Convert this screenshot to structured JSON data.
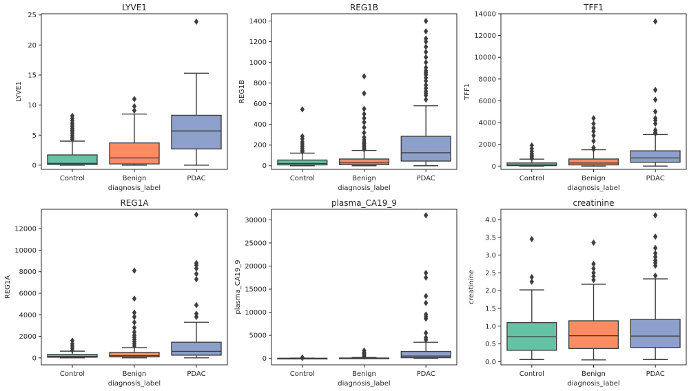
{
  "chart_data": [
    {
      "type": "box",
      "title": "LYVE1",
      "xlabel": "diagnosis_label",
      "ylabel": "LYVE1",
      "categories": [
        "Control",
        "Benign",
        "PDAC"
      ],
      "ylim": [
        -0.7,
        25.2
      ],
      "yticks": [
        0,
        5,
        10,
        15,
        20,
        25
      ],
      "boxes": [
        {
          "category": "Control",
          "min": 0,
          "q1": 0.1,
          "median": 0.3,
          "q3": 1.7,
          "max": 4.0,
          "outliers": [
            4.3,
            4.6,
            4.9,
            5.2,
            5.5,
            5.8,
            6.1,
            6.4,
            6.7,
            7.0,
            7.4,
            7.8,
            8.2
          ]
        },
        {
          "category": "Benign",
          "min": 0,
          "q1": 0.2,
          "median": 1.2,
          "q3": 3.7,
          "max": 8.5,
          "outliers": [
            9.1,
            9.8,
            11.0
          ]
        },
        {
          "category": "PDAC",
          "min": 0,
          "q1": 2.7,
          "median": 5.7,
          "q3": 8.3,
          "max": 15.3,
          "outliers": [
            23.9
          ]
        }
      ]
    },
    {
      "type": "box",
      "title": "REG1B",
      "xlabel": "diagnosis_label",
      "ylabel": "REG1B",
      "categories": [
        "Control",
        "Benign",
        "PDAC"
      ],
      "ylim": [
        -35,
        1470
      ],
      "yticks": [
        0,
        200,
        400,
        600,
        800,
        1000,
        1200,
        1400
      ],
      "boxes": [
        {
          "category": "Control",
          "min": 0,
          "q1": 8,
          "median": 22,
          "q3": 55,
          "max": 122,
          "outliers": [
            135,
            150,
            170,
            190,
            210,
            230,
            260,
            285,
            545
          ]
        },
        {
          "category": "Benign",
          "min": 0,
          "q1": 10,
          "median": 28,
          "q3": 65,
          "max": 148,
          "outliers": [
            158,
            170,
            185,
            200,
            215,
            230,
            250,
            275,
            320,
            370,
            420,
            460,
            500,
            550,
            700,
            865
          ]
        },
        {
          "category": "PDAC",
          "min": 0,
          "q1": 45,
          "median": 125,
          "q3": 285,
          "max": 580,
          "outliers": [
            640,
            680,
            700,
            720,
            750,
            780,
            820,
            850,
            880,
            900,
            920,
            950,
            1000,
            1050,
            1100,
            1150,
            1200,
            1230,
            1300,
            1400
          ]
        }
      ]
    },
    {
      "type": "box",
      "title": "TFF1",
      "xlabel": "diagnosis_label",
      "ylabel": "TFF1",
      "categories": [
        "Control",
        "Benign",
        "PDAC"
      ],
      "ylim": [
        -300,
        14000
      ],
      "yticks": [
        0,
        2000,
        4000,
        6000,
        8000,
        10000,
        12000,
        14000
      ],
      "boxes": [
        {
          "category": "Control",
          "min": 0,
          "q1": 40,
          "median": 110,
          "q3": 290,
          "max": 640,
          "outliers": [
            700,
            850,
            1000,
            1150,
            1350,
            1600,
            1900
          ]
        },
        {
          "category": "Benign",
          "min": 0,
          "q1": 110,
          "median": 280,
          "q3": 650,
          "max": 1500,
          "outliers": [
            1550,
            1700,
            2300,
            2800,
            3200,
            3500,
            3900,
            4400
          ]
        },
        {
          "category": "PDAC",
          "min": 0,
          "q1": 350,
          "median": 750,
          "q3": 1400,
          "max": 2900,
          "outliers": [
            3000,
            3100,
            3300,
            3900,
            4200,
            4400,
            5000,
            6100,
            7000,
            13300
          ]
        }
      ]
    },
    {
      "type": "box",
      "title": "REG1A",
      "xlabel": "diagnosis_label",
      "ylabel": "REG1A",
      "categories": [
        "Control",
        "Benign",
        "PDAC"
      ],
      "ylim": [
        -650,
        13800
      ],
      "yticks": [
        0,
        2000,
        4000,
        6000,
        8000,
        10000,
        12000
      ],
      "boxes": [
        {
          "category": "Control",
          "min": 0,
          "q1": 60,
          "median": 140,
          "q3": 320,
          "max": 620,
          "outliers": [
            700,
            900,
            1100,
            1300,
            1600
          ]
        },
        {
          "category": "Benign",
          "min": 0,
          "q1": 90,
          "median": 200,
          "q3": 500,
          "max": 950,
          "outliers": [
            1100,
            1300,
            1500,
            1700,
            1900,
            2100,
            2400,
            2800,
            3300,
            3800,
            4200,
            5500,
            8100
          ]
        },
        {
          "category": "PDAC",
          "min": 0,
          "q1": 250,
          "median": 600,
          "q3": 1450,
          "max": 3300,
          "outliers": [
            3800,
            4100,
            4900,
            7300,
            7800,
            8300,
            8600,
            8800,
            13300
          ]
        }
      ]
    },
    {
      "type": "box",
      "title": "plasma_CA19_9",
      "xlabel": "diagnosis_label",
      "ylabel": "plasma_CA19_9",
      "categories": [
        "Control",
        "Benign",
        "PDAC"
      ],
      "ylim": [
        -1400,
        32300
      ],
      "yticks": [
        0,
        5000,
        10000,
        15000,
        20000,
        25000,
        30000
      ],
      "boxes": [
        {
          "category": "Control",
          "min": 0,
          "q1": 5,
          "median": 10,
          "q3": 25,
          "max": 60,
          "outliers": [
            80,
            120,
            200
          ]
        },
        {
          "category": "Benign",
          "min": 0,
          "q1": 10,
          "median": 25,
          "q3": 80,
          "max": 200,
          "outliers": [
            400,
            700,
            1000,
            1300,
            1700
          ]
        },
        {
          "category": "PDAC",
          "min": 0,
          "q1": 150,
          "median": 500,
          "q3": 1500,
          "max": 3500,
          "outliers": [
            4000,
            4500,
            5500,
            8600,
            9000,
            9500,
            12000,
            13500,
            17500,
            18500,
            31000
          ]
        }
      ]
    },
    {
      "type": "box",
      "title": "creatinine",
      "xlabel": "diagnosis_label",
      "ylabel": "creatinine",
      "categories": [
        "Control",
        "Benign",
        "PDAC"
      ],
      "ylim": [
        -0.09,
        4.29
      ],
      "yticks": [
        0.0,
        0.5,
        1.0,
        1.5,
        2.0,
        2.5,
        3.0,
        3.5,
        4.0
      ],
      "ytick_labels": [
        "0.0",
        "0.5",
        "1.0",
        "1.5",
        "2.0",
        "2.5",
        "3.0",
        "3.5",
        "4.0"
      ],
      "boxes": [
        {
          "category": "Control",
          "min": 0.06,
          "q1": 0.32,
          "median": 0.7,
          "q3": 1.1,
          "max": 2.02,
          "outliers": [
            2.25,
            2.38,
            3.45
          ]
        },
        {
          "category": "Benign",
          "min": 0.05,
          "q1": 0.37,
          "median": 0.73,
          "q3": 1.15,
          "max": 2.18,
          "outliers": [
            2.3,
            2.4,
            2.5,
            2.62,
            2.75,
            3.35
          ]
        },
        {
          "category": "PDAC",
          "min": 0.06,
          "q1": 0.4,
          "median": 0.72,
          "q3": 1.19,
          "max": 2.33,
          "outliers": [
            2.42,
            2.7,
            2.78,
            2.85,
            2.95,
            3.05,
            3.2,
            3.52,
            4.12
          ]
        }
      ]
    }
  ],
  "colors": {
    "Control": "#66c2a5",
    "Benign": "#fc8d62",
    "PDAC": "#8da0cb",
    "line": "#3f3f3f",
    "axis": "#262626"
  }
}
